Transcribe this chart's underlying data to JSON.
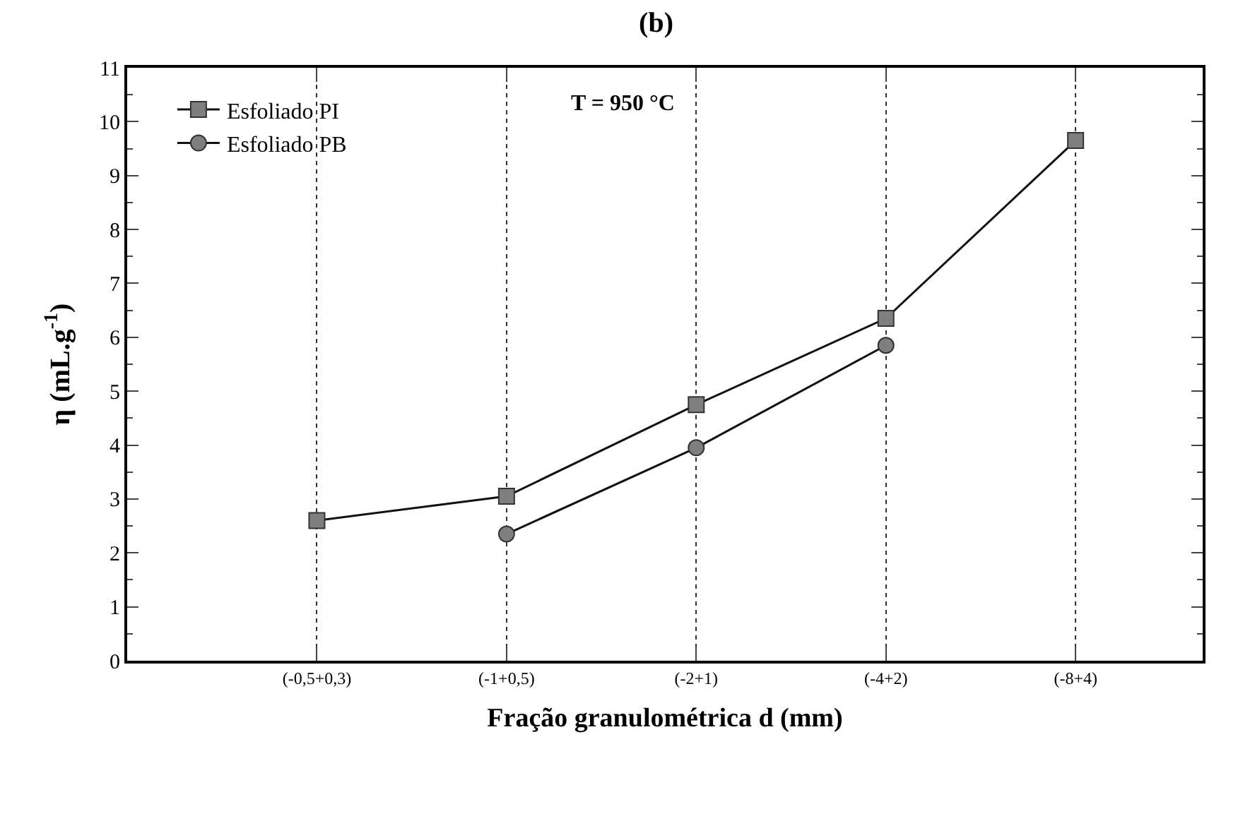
{
  "chart_data": {
    "type": "line",
    "title": "(b)",
    "xlabel": "Fração granulométrica d (mm)",
    "ylabel": "η (mL.g$^{-1}$)",
    "categories": [
      "(-0,5+0,3)",
      "(-1+0,5)",
      "(-2+1)",
      "(-4+2)",
      "(-8+4)"
    ],
    "series": [
      {
        "name": "Esfoliado PI",
        "color": "#7f7f7f",
        "marker": "square",
        "values": [
          2.6,
          3.05,
          4.75,
          6.35,
          9.65
        ]
      },
      {
        "name": "Esfoliado PB",
        "color": "#7f7f7f",
        "marker": "circle",
        "values": [
          null,
          2.35,
          3.95,
          5.85,
          null
        ]
      }
    ],
    "ylim": [
      0,
      11
    ],
    "yticks": [
      0,
      1,
      2,
      3,
      4,
      5,
      6,
      7,
      8,
      9,
      10,
      11
    ],
    "grid": "x",
    "legend": "top left",
    "line_style": "solid",
    "annotations": [
      "T = 950 °C"
    ]
  }
}
